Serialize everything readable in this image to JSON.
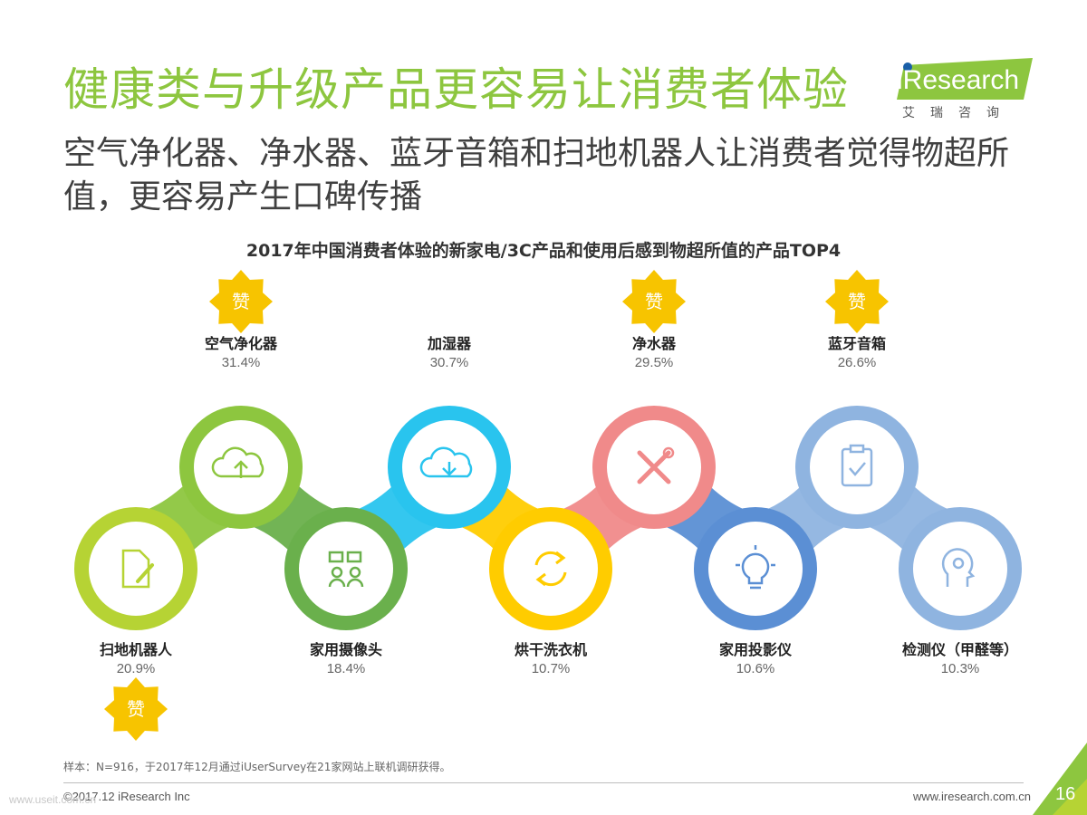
{
  "header": {
    "title": "健康类与升级产品更容易让消费者体验",
    "subtitle": "空气净化器、净水器、蓝牙音箱和扫地机器人让消费者觉得物超所值，更容易产生口碑传播"
  },
  "logo": {
    "main": "iResearch",
    "sub": "艾瑞咨询"
  },
  "badge_label": "赞",
  "chart_data": {
    "type": "bar",
    "title": "2017年中国消费者体验的新家电/3C产品和使用后感到物超所值的产品TOP4",
    "unit": "%",
    "categories": [
      "空气净化器",
      "加湿器",
      "净水器",
      "蓝牙音箱",
      "扫地机器人",
      "家用摄像头",
      "烘干洗衣机",
      "家用投影仪",
      "检测仪（甲醛等）"
    ],
    "values": [
      31.4,
      30.7,
      29.5,
      26.6,
      20.9,
      18.4,
      10.7,
      10.6,
      10.3
    ],
    "labels": [
      "31.4%",
      "30.7%",
      "29.5%",
      "26.6%",
      "20.9%",
      "18.4%",
      "10.7%",
      "10.6%",
      "10.3%"
    ],
    "top4": [
      "空气净化器",
      "净水器",
      "蓝牙音箱",
      "扫地机器人"
    ],
    "colors": [
      "#8dc63f",
      "#29c4ee",
      "#f08a8a",
      "#8fb4e0",
      "#b6d334",
      "#6ab04c",
      "#ffcc00",
      "#5b8fd4",
      "#8fb4e0"
    ],
    "icons": [
      "cloud-upload-icon",
      "cloud-download-icon",
      "wrench-screwdriver-icon",
      "clipboard-check-icon",
      "document-pencil-icon",
      "camera-group-icon",
      "refresh-arrows-icon",
      "lightbulb-icon",
      "head-gear-icon"
    ]
  },
  "footer": {
    "note": "样本：N=916，于2017年12月通过iUserSurvey在21家网站上联机调研获得。",
    "copyright": "©2017.12 iResearch Inc",
    "url": "www.iresearch.com.cn",
    "page": "16",
    "watermark": "www.useit.com.cn"
  }
}
